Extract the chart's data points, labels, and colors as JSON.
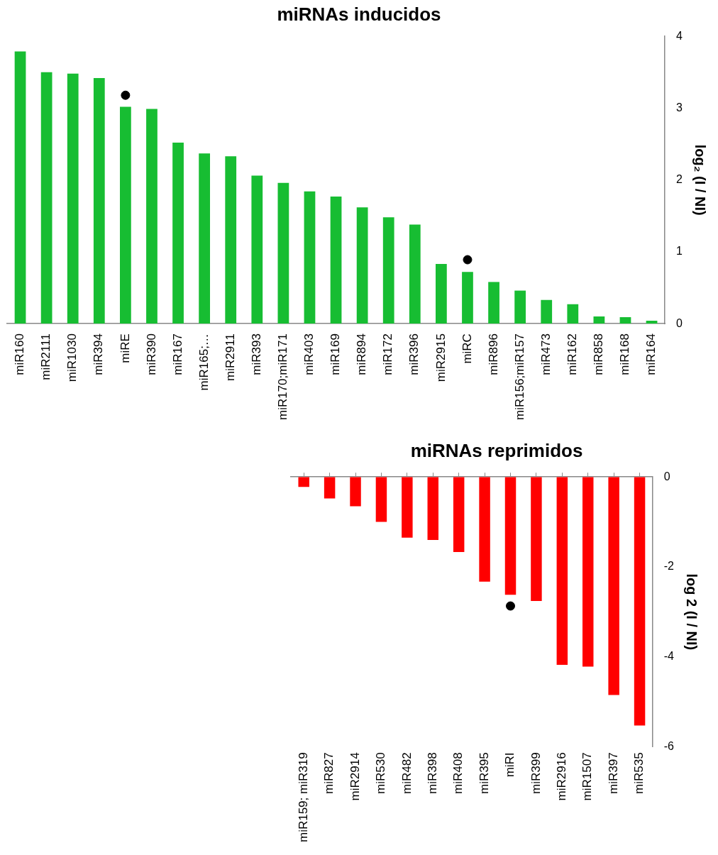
{
  "chart_data": [
    {
      "type": "bar",
      "title": "miRNAs inducidos",
      "ylabel": "log₂ (I / NI)",
      "categories": [
        "miR160",
        "miR2111",
        "miR1030",
        "miR394",
        "miRE",
        "miR390",
        "miR167",
        "miR165;…",
        "miR2911",
        "miR393",
        "miR170;miR171",
        "miR403",
        "miR169",
        "miR894",
        "miR172",
        "miR396",
        "miR2915",
        "miRC",
        "miR896",
        "miR156;miR157",
        "miR473",
        "miR162",
        "miR858",
        "miR168",
        "miR164"
      ],
      "series": [
        {
          "color": "#17bd32",
          "values": [
            3.79,
            3.5,
            3.48,
            3.42,
            3.02,
            2.99,
            2.52,
            2.37,
            2.33,
            2.06,
            1.96,
            1.84,
            1.77,
            1.62,
            1.48,
            1.38,
            0.83,
            0.72,
            0.58,
            0.46,
            0.33,
            0.27,
            0.1,
            0.09,
            0.04
          ]
        },
        {
          "type": "scatter",
          "color": "#000000",
          "x": [
            "miRE",
            "miRC"
          ],
          "values": [
            3.18,
            0.89
          ]
        }
      ],
      "marker": "circle",
      "ylim": [
        0,
        4
      ],
      "yticks": [
        0,
        1,
        2,
        3,
        4
      ],
      "grid": false,
      "legend": false
    },
    {
      "type": "bar",
      "title": "miRNAs reprimidos",
      "ylabel": "log 2 (I / NI)",
      "categories": [
        "miR159; miR319",
        "miR827",
        "miR2914",
        "miR530",
        "miR482",
        "miR398",
        "miR408",
        "miR395",
        "miRI",
        "miR399",
        "miR2916",
        "miR1507",
        "miR397",
        "miR535"
      ],
      "series": [
        {
          "color": "#ff0000",
          "values": [
            -0.22,
            -0.48,
            -0.65,
            -1.0,
            -1.35,
            -1.4,
            -1.67,
            -2.33,
            -2.62,
            -2.76,
            -4.18,
            -4.22,
            -4.85,
            -5.53
          ]
        },
        {
          "type": "scatter",
          "color": "#000000",
          "x": [
            "miRI"
          ],
          "values": [
            -2.87
          ]
        }
      ],
      "marker": "circle",
      "ylim": [
        -6,
        0
      ],
      "yticks": [
        -6,
        -4,
        -2,
        0
      ],
      "grid": false,
      "legend": false
    }
  ]
}
